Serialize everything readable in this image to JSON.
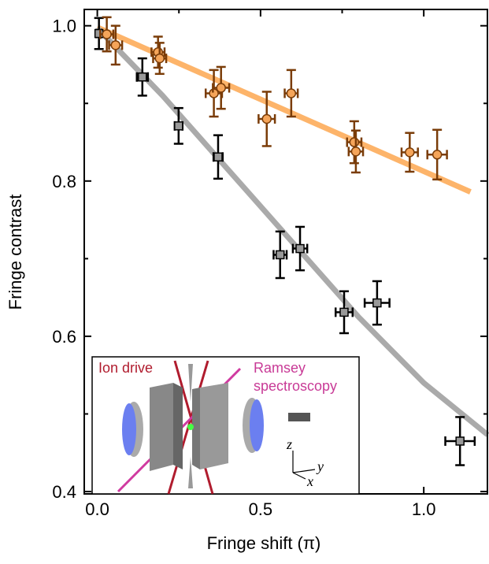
{
  "chart_data": {
    "type": "scatter",
    "x_label": "Fringe shift (π)",
    "y_label": "Fringe contrast",
    "xlim": [
      -0.04,
      1.195
    ],
    "ylim": [
      0.397,
      1.021
    ],
    "xticks": [
      {
        "value": 0,
        "label": "0.0"
      },
      0.5,
      {
        "value": 1,
        "label": "1.0"
      }
    ],
    "yticks": [
      0.4,
      0.6,
      0.8,
      {
        "value": 1,
        "label": "1.0"
      }
    ],
    "xminorticks": [
      0.25,
      0.75
    ],
    "yminorticks": [
      0.5,
      0.7,
      0.9
    ],
    "series": [
      {
        "marker": "square",
        "color": "#999999",
        "error_color": "#000000",
        "x": [
          0.005,
          0.138,
          0.249,
          0.37,
          0.56,
          0.621,
          0.756,
          0.857,
          1.111
        ],
        "values": [
          0.99,
          0.934,
          0.871,
          0.831,
          0.705,
          0.713,
          0.631,
          0.643,
          0.465
        ],
        "xerr": [
          0.008,
          0.017,
          0.012,
          0.014,
          0.02,
          0.022,
          0.026,
          0.038,
          0.045
        ],
        "yerr": [
          0.02,
          0.024,
          0.023,
          0.028,
          0.03,
          0.028,
          0.027,
          0.028,
          0.031
        ]
      },
      {
        "marker": "circle",
        "color": "#f5a55a",
        "error_color": "#7a3c08",
        "x": [
          0.029,
          0.056,
          0.186,
          0.191,
          0.357,
          0.379,
          0.519,
          0.594,
          0.787,
          0.792,
          0.957,
          1.041
        ],
        "values": [
          0.989,
          0.975,
          0.966,
          0.958,
          0.913,
          0.92,
          0.88,
          0.913,
          0.85,
          0.838,
          0.837,
          0.834
        ],
        "xerr": [
          0.02,
          0.02,
          0.02,
          0.02,
          0.025,
          0.025,
          0.025,
          0.02,
          0.022,
          0.022,
          0.025,
          0.03
        ],
        "yerr": [
          0.022,
          0.025,
          0.02,
          0.02,
          0.03,
          0.027,
          0.035,
          0.03,
          0.027,
          0.027,
          0.025,
          0.032
        ]
      }
    ],
    "fits": [
      {
        "color": "#fdb46a",
        "x": [
          0.0,
          1.143
        ],
        "values": [
          0.998,
          0.786
        ]
      },
      {
        "color": "#aaaaaa",
        "x": [
          0.0,
          0.2,
          0.4,
          0.6,
          0.8,
          1.0,
          1.196
        ],
        "values": [
          0.997,
          0.91,
          0.815,
          0.72,
          0.625,
          0.54,
          0.473
        ]
      }
    ],
    "inset": {
      "ion_drive": "Ion drive",
      "ramsey": [
        "Ramsey",
        "spectroscopy"
      ],
      "axes": [
        "z",
        "y",
        "x"
      ]
    }
  }
}
